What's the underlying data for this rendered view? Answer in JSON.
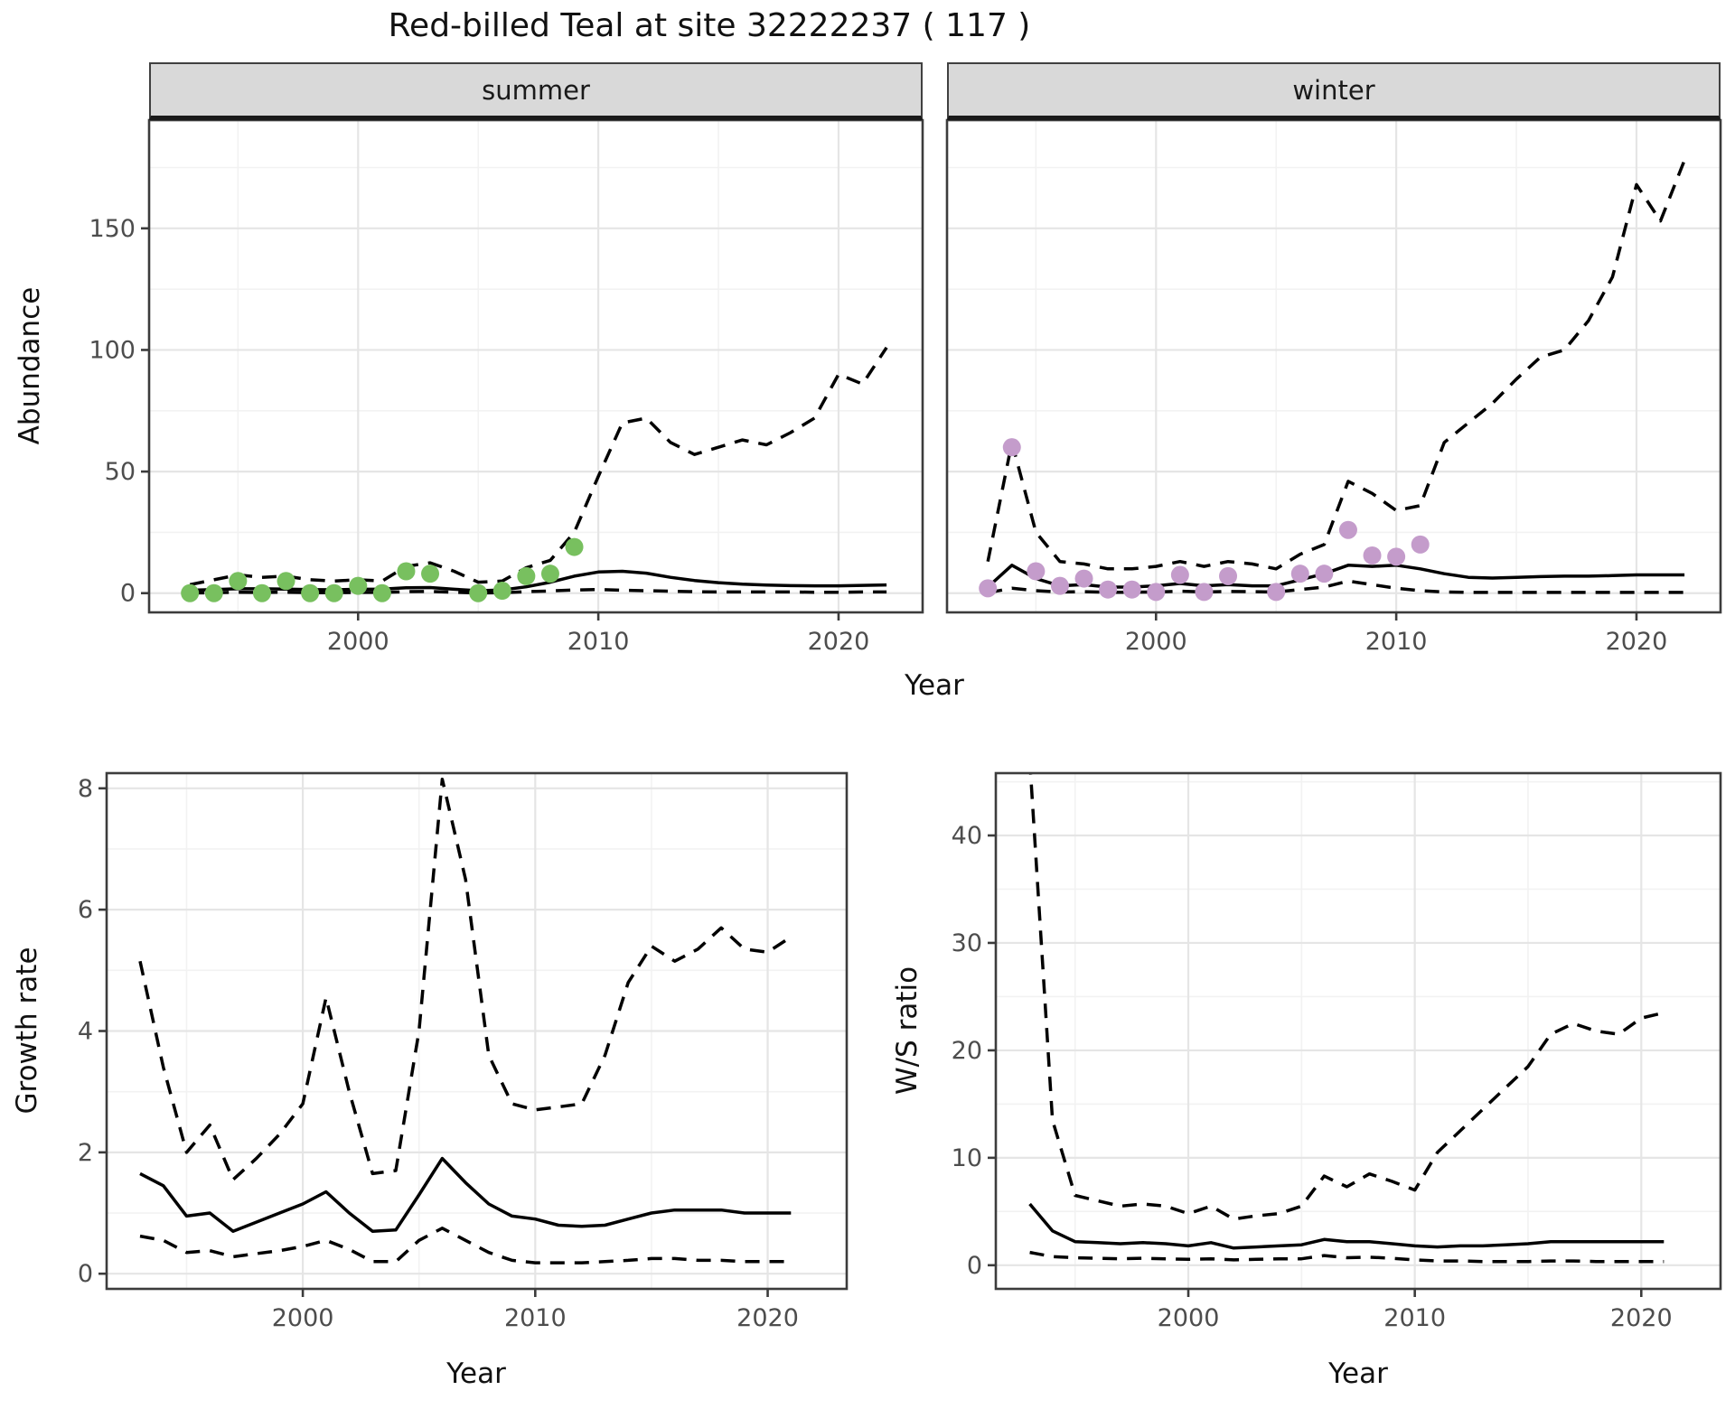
{
  "title": "Red-billed Teal at site 32222237 ( 117 )",
  "colors": {
    "summer_points": "#78C05F",
    "winter_points": "#C49CCB",
    "fit_line": "#000000",
    "ci_line": "#000000",
    "strip_background": "#D9D9D9",
    "grid_major": "#E5E5E5",
    "grid_minor": "#F2F2F2",
    "panel_border": "#3C3C3C",
    "tick_label": "#4D4D4D"
  },
  "chart_data": [
    {
      "id": "abundance_summer",
      "type": "line",
      "facet_label": "summer",
      "ylabel": "Abundance",
      "xlabel": "Year",
      "x_ticks": [
        2000,
        2010,
        2020
      ],
      "y_ticks": [
        0,
        50,
        100,
        150
      ],
      "xlim": [
        1991.3,
        2023.5
      ],
      "ylim": [
        -7.9,
        194.5
      ],
      "grid": true,
      "legend": "none",
      "series": [
        {
          "name": "upper_ci",
          "style": "dashed",
          "x": [
            1993,
            1994,
            1995,
            1996,
            1997,
            1998,
            1999,
            2000,
            2001,
            2002,
            2003,
            2004,
            2005,
            2006,
            2007,
            2008,
            2009,
            2010,
            2011,
            2012,
            2013,
            2014,
            2015,
            2016,
            2017,
            2018,
            2019,
            2020,
            2021,
            2022
          ],
          "values": [
            3.5,
            5.5,
            7.5,
            6.5,
            7.0,
            5.5,
            5.0,
            5.5,
            5.0,
            11.0,
            12.5,
            9.0,
            4.5,
            5.0,
            10.5,
            13.5,
            25.0,
            48.0,
            70.0,
            72.0,
            62.0,
            57.0,
            60.0,
            63.0,
            61.0,
            66.0,
            72.0,
            90.0,
            86.0,
            101.0
          ]
        },
        {
          "name": "lower_ci",
          "style": "dashed",
          "x": [
            1993,
            1994,
            1995,
            1996,
            1997,
            1998,
            1999,
            2000,
            2001,
            2002,
            2003,
            2004,
            2005,
            2006,
            2007,
            2008,
            2009,
            2010,
            2011,
            2012,
            2013,
            2014,
            2015,
            2016,
            2017,
            2018,
            2019,
            2020,
            2021,
            2022
          ],
          "values": [
            0.1,
            0.2,
            0.4,
            0.3,
            0.4,
            0.2,
            0.2,
            0.3,
            0.3,
            0.6,
            0.7,
            0.4,
            0.1,
            0.2,
            0.6,
            0.9,
            1.3,
            1.5,
            1.2,
            1.0,
            0.8,
            0.6,
            0.5,
            0.5,
            0.5,
            0.5,
            0.4,
            0.4,
            0.5,
            0.5
          ]
        },
        {
          "name": "fit",
          "style": "solid",
          "x": [
            1993,
            1994,
            1995,
            1996,
            1997,
            1998,
            1999,
            2000,
            2001,
            2002,
            2003,
            2004,
            2005,
            2006,
            2007,
            2008,
            2009,
            2010,
            2011,
            2012,
            2013,
            2014,
            2015,
            2016,
            2017,
            2018,
            2019,
            2020,
            2021,
            2022
          ],
          "values": [
            1.2,
            1.5,
            1.8,
            1.8,
            1.7,
            1.5,
            1.4,
            1.6,
            1.7,
            2.2,
            2.3,
            1.6,
            1.0,
            1.3,
            2.6,
            4.5,
            7.0,
            8.7,
            9.0,
            8.2,
            6.5,
            5.2,
            4.3,
            3.7,
            3.3,
            3.1,
            3.0,
            3.0,
            3.2,
            3.4
          ]
        },
        {
          "name": "observations",
          "style": "points",
          "color": "#78C05F",
          "x": [
            1993,
            1994,
            1995,
            1996,
            1997,
            1998,
            1999,
            2000,
            2001,
            2002,
            2003,
            2005,
            2006,
            2007,
            2008,
            2009
          ],
          "values": [
            0,
            0,
            5,
            0,
            5,
            0,
            0,
            3,
            0,
            9,
            8,
            0,
            1,
            7,
            8,
            19
          ]
        }
      ]
    },
    {
      "id": "abundance_winter",
      "type": "line",
      "facet_label": "winter",
      "ylabel": "Abundance",
      "xlabel": "Year",
      "x_ticks": [
        2000,
        2010,
        2020
      ],
      "y_ticks": [
        0,
        50,
        100,
        150
      ],
      "xlim": [
        1991.3,
        2023.5
      ],
      "ylim": [
        -7.9,
        194.5
      ],
      "grid": true,
      "legend": "none",
      "series": [
        {
          "name": "upper_ci",
          "style": "dashed",
          "x": [
            1993,
            1994,
            1995,
            1996,
            1997,
            1998,
            1999,
            2000,
            2001,
            2002,
            2003,
            2004,
            2005,
            2006,
            2007,
            2008,
            2009,
            2010,
            2011,
            2012,
            2013,
            2014,
            2015,
            2016,
            2017,
            2018,
            2019,
            2020,
            2021,
            2022
          ],
          "values": [
            13,
            62,
            25,
            13,
            12,
            10,
            10,
            11,
            13,
            11,
            13,
            12,
            10,
            16,
            20,
            46,
            41,
            34,
            36,
            62,
            70,
            78,
            88,
            97,
            100,
            112,
            130,
            168,
            153,
            178
          ]
        },
        {
          "name": "lower_ci",
          "style": "dashed",
          "x": [
            1993,
            1994,
            1995,
            1996,
            1997,
            1998,
            1999,
            2000,
            2001,
            2002,
            2003,
            2004,
            2005,
            2006,
            2007,
            2008,
            2009,
            2010,
            2011,
            2012,
            2013,
            2014,
            2015,
            2016,
            2017,
            2018,
            2019,
            2020,
            2021,
            2022
          ],
          "values": [
            0.2,
            2.0,
            1.0,
            0.5,
            0.6,
            0.4,
            0.4,
            0.5,
            0.8,
            0.5,
            0.7,
            0.6,
            0.5,
            1.5,
            2.5,
            5.0,
            3.5,
            2.0,
            1.0,
            0.5,
            0.3,
            0.3,
            0.3,
            0.3,
            0.3,
            0.3,
            0.3,
            0.3,
            0.3,
            0.3
          ]
        },
        {
          "name": "fit",
          "style": "solid",
          "x": [
            1993,
            1994,
            1995,
            1996,
            1997,
            1998,
            1999,
            2000,
            2001,
            2002,
            2003,
            2004,
            2005,
            2006,
            2007,
            2008,
            2009,
            2010,
            2011,
            2012,
            2013,
            2014,
            2015,
            2016,
            2017,
            2018,
            2019,
            2020,
            2021,
            2022
          ],
          "values": [
            2.5,
            11.5,
            6.0,
            3.0,
            3.5,
            2.5,
            2.5,
            3.0,
            4.0,
            3.0,
            3.5,
            3.0,
            3.0,
            5.5,
            8.0,
            11.5,
            11.0,
            11.5,
            10.0,
            8.0,
            6.5,
            6.2,
            6.5,
            6.8,
            7.0,
            7.0,
            7.2,
            7.5,
            7.5,
            7.5
          ]
        },
        {
          "name": "observations",
          "style": "points",
          "color": "#C49CCB",
          "x": [
            1993,
            1994,
            1995,
            1996,
            1997,
            1998,
            1999,
            2000,
            2001,
            2002,
            2003,
            2005,
            2006,
            2007,
            2008,
            2009,
            2010,
            2011
          ],
          "values": [
            2,
            60,
            9,
            3,
            6,
            1.5,
            1.5,
            0.5,
            7.5,
            0.5,
            7,
            0.5,
            8,
            8,
            26,
            15.5,
            15,
            20
          ]
        }
      ]
    },
    {
      "id": "growth_rate",
      "type": "line",
      "facet_label": "",
      "ylabel": "Growth rate",
      "xlabel": "Year",
      "x_ticks": [
        2000,
        2010,
        2020
      ],
      "y_ticks": [
        0,
        2,
        4,
        6,
        8
      ],
      "xlim": [
        1991.56,
        2023.4
      ],
      "ylim": [
        -0.25,
        8.25
      ],
      "grid": true,
      "legend": "none",
      "series": [
        {
          "name": "upper_ci",
          "style": "dashed",
          "x": [
            1993,
            1994,
            1995,
            1996,
            1997,
            1998,
            1999,
            2000,
            2001,
            2002,
            2003,
            2004,
            2005,
            2006,
            2007,
            2008,
            2009,
            2010,
            2011,
            2012,
            2013,
            2014,
            2015,
            2016,
            2017,
            2018,
            2019,
            2020,
            2021
          ],
          "values": [
            5.15,
            3.4,
            2.0,
            2.45,
            1.55,
            1.9,
            2.3,
            2.8,
            4.55,
            3.0,
            1.65,
            1.7,
            4.0,
            8.15,
            6.5,
            3.6,
            2.8,
            2.7,
            2.75,
            2.8,
            3.6,
            4.8,
            5.4,
            5.15,
            5.35,
            5.7,
            5.35,
            5.3,
            5.55
          ]
        },
        {
          "name": "lower_ci",
          "style": "dashed",
          "x": [
            1993,
            1994,
            1995,
            1996,
            1997,
            1998,
            1999,
            2000,
            2001,
            2002,
            2003,
            2004,
            2005,
            2006,
            2007,
            2008,
            2009,
            2010,
            2011,
            2012,
            2013,
            2014,
            2015,
            2016,
            2017,
            2018,
            2019,
            2020,
            2021
          ],
          "values": [
            0.62,
            0.55,
            0.35,
            0.38,
            0.28,
            0.33,
            0.38,
            0.45,
            0.55,
            0.4,
            0.2,
            0.2,
            0.55,
            0.75,
            0.55,
            0.35,
            0.22,
            0.18,
            0.18,
            0.18,
            0.2,
            0.22,
            0.25,
            0.25,
            0.22,
            0.22,
            0.2,
            0.2,
            0.2
          ]
        },
        {
          "name": "fit",
          "style": "solid",
          "x": [
            1993,
            1994,
            1995,
            1996,
            1997,
            1998,
            1999,
            2000,
            2001,
            2002,
            2003,
            2004,
            2005,
            2006,
            2007,
            2008,
            2009,
            2010,
            2011,
            2012,
            2013,
            2014,
            2015,
            2016,
            2017,
            2018,
            2019,
            2020,
            2021
          ],
          "values": [
            1.65,
            1.45,
            0.95,
            1.0,
            0.7,
            0.85,
            1.0,
            1.15,
            1.35,
            1.0,
            0.7,
            0.72,
            1.3,
            1.9,
            1.5,
            1.15,
            0.95,
            0.9,
            0.8,
            0.78,
            0.8,
            0.9,
            1.0,
            1.05,
            1.05,
            1.05,
            1.0,
            1.0,
            1.0
          ]
        }
      ]
    },
    {
      "id": "ws_ratio",
      "type": "line",
      "facet_label": "",
      "ylabel": "W/S ratio",
      "xlabel": "Year",
      "x_ticks": [
        2000,
        2010,
        2020
      ],
      "y_ticks": [
        0,
        10,
        20,
        30,
        40
      ],
      "xlim": [
        1991.5,
        2023.5
      ],
      "ylim": [
        -2.2,
        45.8
      ],
      "grid": true,
      "legend": "none",
      "series": [
        {
          "name": "upper_ci",
          "style": "dashed",
          "x": [
            1993,
            1994,
            1995,
            1996,
            1997,
            1998,
            1999,
            2000,
            2001,
            2002,
            2003,
            2004,
            2005,
            2006,
            2007,
            2008,
            2009,
            2010,
            2011,
            2012,
            2013,
            2014,
            2015,
            2016,
            2017,
            2018,
            2019,
            2020,
            2021
          ],
          "values": [
            47,
            13.5,
            6.5,
            6.0,
            5.5,
            5.7,
            5.5,
            4.8,
            5.5,
            4.3,
            4.6,
            4.8,
            5.5,
            8.3,
            7.3,
            8.5,
            7.8,
            7.0,
            10.5,
            12.5,
            14.5,
            16.5,
            18.5,
            21.5,
            22.5,
            21.8,
            21.5,
            23.0,
            23.5
          ]
        },
        {
          "name": "lower_ci",
          "style": "dashed",
          "x": [
            1993,
            1994,
            1995,
            1996,
            1997,
            1998,
            1999,
            2000,
            2001,
            2002,
            2003,
            2004,
            2005,
            2006,
            2007,
            2008,
            2009,
            2010,
            2011,
            2012,
            2013,
            2014,
            2015,
            2016,
            2017,
            2018,
            2019,
            2020,
            2021
          ],
          "values": [
            1.2,
            0.8,
            0.7,
            0.65,
            0.6,
            0.65,
            0.6,
            0.55,
            0.6,
            0.5,
            0.55,
            0.6,
            0.6,
            0.9,
            0.7,
            0.75,
            0.65,
            0.5,
            0.4,
            0.4,
            0.35,
            0.35,
            0.35,
            0.4,
            0.4,
            0.35,
            0.35,
            0.35,
            0.35
          ]
        },
        {
          "name": "fit",
          "style": "solid",
          "x": [
            1993,
            1994,
            1995,
            1996,
            1997,
            1998,
            1999,
            2000,
            2001,
            2002,
            2003,
            2004,
            2005,
            2006,
            2007,
            2008,
            2009,
            2010,
            2011,
            2012,
            2013,
            2014,
            2015,
            2016,
            2017,
            2018,
            2019,
            2020,
            2021
          ],
          "values": [
            5.7,
            3.2,
            2.2,
            2.1,
            2.0,
            2.1,
            2.0,
            1.8,
            2.1,
            1.6,
            1.7,
            1.8,
            1.9,
            2.4,
            2.2,
            2.2,
            2.0,
            1.8,
            1.7,
            1.8,
            1.8,
            1.9,
            2.0,
            2.2,
            2.2,
            2.2,
            2.2,
            2.2,
            2.2
          ]
        }
      ]
    }
  ]
}
